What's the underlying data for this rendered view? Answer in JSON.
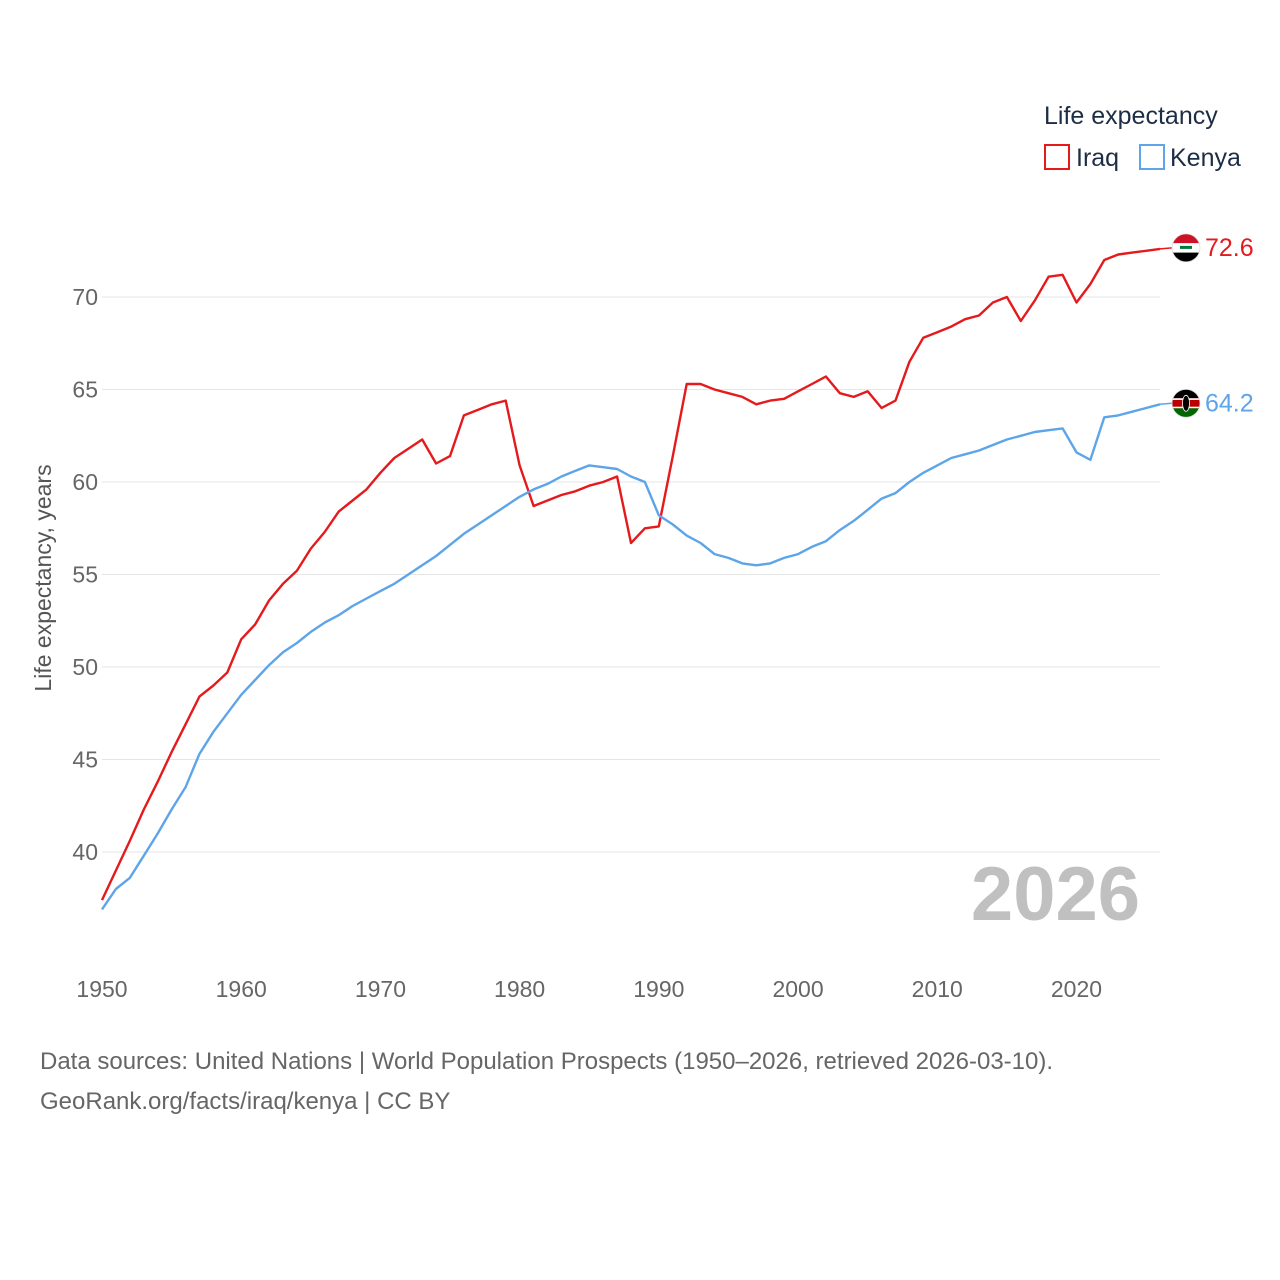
{
  "chart_data": {
    "type": "line",
    "title": "",
    "xlabel": "",
    "ylabel": "Life expectancy, years",
    "xlim": [
      1950,
      2026
    ],
    "ylim": [
      35,
      74
    ],
    "yticks": [
      40,
      45,
      50,
      55,
      60,
      65,
      70
    ],
    "xticks": [
      1950,
      1960,
      1970,
      1980,
      1990,
      2000,
      2010,
      2020
    ],
    "legend": {
      "title": "Life expectancy",
      "position": "top-right"
    },
    "year_label": "2026",
    "x": [
      1950,
      1951,
      1952,
      1953,
      1954,
      1955,
      1956,
      1957,
      1958,
      1959,
      1960,
      1961,
      1962,
      1963,
      1964,
      1965,
      1966,
      1967,
      1968,
      1969,
      1970,
      1971,
      1972,
      1973,
      1974,
      1975,
      1976,
      1977,
      1978,
      1979,
      1980,
      1981,
      1982,
      1983,
      1984,
      1985,
      1986,
      1987,
      1988,
      1989,
      1990,
      1991,
      1992,
      1993,
      1994,
      1995,
      1996,
      1997,
      1998,
      1999,
      2000,
      2001,
      2002,
      2003,
      2004,
      2005,
      2006,
      2007,
      2008,
      2009,
      2010,
      2011,
      2012,
      2013,
      2014,
      2015,
      2016,
      2017,
      2018,
      2019,
      2020,
      2021,
      2022,
      2023,
      2024,
      2025,
      2026
    ],
    "series": [
      {
        "name": "Iraq",
        "color": "#e41a1c",
        "end_label": "72.6",
        "flag": "iraq-flag",
        "values": [
          37.4,
          39.0,
          40.6,
          42.3,
          43.8,
          45.4,
          46.9,
          48.4,
          49.0,
          49.7,
          51.5,
          52.3,
          53.6,
          54.5,
          55.2,
          56.4,
          57.3,
          58.4,
          59.0,
          59.6,
          60.5,
          61.3,
          61.8,
          62.3,
          61.0,
          61.4,
          63.6,
          63.9,
          64.2,
          64.4,
          60.9,
          58.7,
          59.0,
          59.3,
          59.5,
          59.8,
          60.0,
          60.3,
          56.7,
          57.5,
          57.6,
          61.4,
          65.3,
          65.3,
          65.0,
          64.8,
          64.6,
          64.2,
          64.4,
          64.5,
          64.9,
          65.3,
          65.7,
          64.8,
          64.6,
          64.9,
          64.0,
          64.4,
          66.5,
          67.8,
          68.1,
          68.4,
          68.8,
          69.0,
          69.7,
          70.0,
          68.7,
          69.8,
          71.1,
          71.2,
          69.7,
          70.7,
          72.0,
          72.3,
          72.4,
          72.5,
          72.6
        ]
      },
      {
        "name": "Kenya",
        "color": "#5da5e8",
        "end_label": "64.2",
        "flag": "kenya-flag",
        "values": [
          36.9,
          38.0,
          38.6,
          39.8,
          41.0,
          42.3,
          43.5,
          45.3,
          46.5,
          47.5,
          48.5,
          49.3,
          50.1,
          50.8,
          51.3,
          51.9,
          52.4,
          52.8,
          53.3,
          53.7,
          54.1,
          54.5,
          55.0,
          55.5,
          56.0,
          56.6,
          57.2,
          57.7,
          58.2,
          58.7,
          59.2,
          59.6,
          59.9,
          60.3,
          60.6,
          60.9,
          60.8,
          60.7,
          60.3,
          60.0,
          58.2,
          57.7,
          57.1,
          56.7,
          56.1,
          55.9,
          55.6,
          55.5,
          55.6,
          55.9,
          56.1,
          56.5,
          56.8,
          57.4,
          57.9,
          58.5,
          59.1,
          59.4,
          60.0,
          60.5,
          60.9,
          61.3,
          61.5,
          61.7,
          62.0,
          62.3,
          62.5,
          62.7,
          62.8,
          62.9,
          61.6,
          61.2,
          63.5,
          63.6,
          63.8,
          64.0,
          64.2
        ]
      }
    ]
  },
  "source": {
    "line1": "Data sources: United Nations | World Population Prospects (1950–2026, retrieved 2026-03-10).",
    "line2": "GeoRank.org/facts/iraq/kenya | CC BY"
  }
}
